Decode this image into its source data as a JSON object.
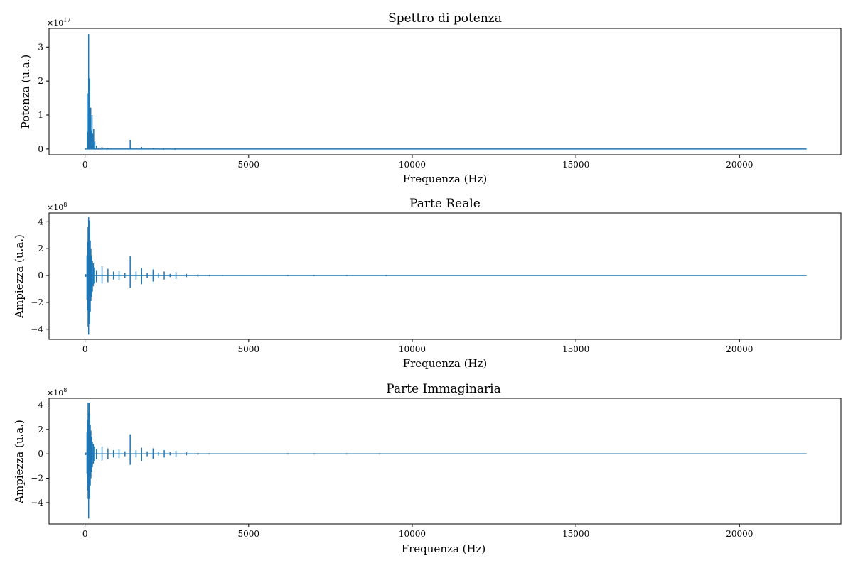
{
  "chart_data": [
    {
      "type": "line",
      "title": "Spettro di potenza",
      "xlabel": "Frequenza (Hz)",
      "ylabel": "Potenza (u.a.)",
      "y_offset_label": "×10",
      "y_offset_exp": "17",
      "xlim": [
        -1100,
        23100
      ],
      "ylim": [
        -0.17,
        3.55
      ],
      "x_ticks": [
        0,
        5000,
        10000,
        15000,
        20000
      ],
      "x_tick_labels": [
        "0",
        "5000",
        "10000",
        "15000",
        "20000"
      ],
      "y_ticks": [
        0,
        1,
        2,
        3
      ],
      "y_tick_labels": [
        "0",
        "1",
        "2",
        "3"
      ],
      "grid": false,
      "series": [
        {
          "color": "#1f77b4",
          "x_range": [
            0,
            22050
          ],
          "kind": "power",
          "spikes": [
            {
              "x": 70,
              "value": 1.64
            },
            {
              "x": 95,
              "value": 0.5
            },
            {
              "x": 110,
              "value": 3.38
            },
            {
              "x": 125,
              "value": 1.2
            },
            {
              "x": 140,
              "value": 2.08
            },
            {
              "x": 160,
              "value": 0.9
            },
            {
              "x": 175,
              "value": 1.22
            },
            {
              "x": 195,
              "value": 0.55
            },
            {
              "x": 215,
              "value": 1.0
            },
            {
              "x": 240,
              "value": 0.45
            },
            {
              "x": 265,
              "value": 0.6
            },
            {
              "x": 300,
              "value": 0.22
            },
            {
              "x": 350,
              "value": 0.1
            },
            {
              "x": 520,
              "value": 0.06
            },
            {
              "x": 700,
              "value": 0.03
            },
            {
              "x": 1380,
              "value": 0.27
            },
            {
              "x": 1730,
              "value": 0.06
            },
            {
              "x": 2080,
              "value": 0.025
            },
            {
              "x": 2400,
              "value": 0.015
            },
            {
              "x": 2750,
              "value": 0.01
            }
          ]
        }
      ]
    },
    {
      "type": "line",
      "title": "Parte Reale",
      "xlabel": "Frequenza (Hz)",
      "ylabel": "Ampiezza (u.a.)",
      "y_offset_label": "×10",
      "y_offset_exp": "8",
      "xlim": [
        -1100,
        23100
      ],
      "ylim": [
        -4.75,
        4.65
      ],
      "x_ticks": [
        0,
        5000,
        10000,
        15000,
        20000
      ],
      "x_tick_labels": [
        "0",
        "5000",
        "10000",
        "15000",
        "20000"
      ],
      "y_ticks": [
        -4,
        -2,
        0,
        2,
        4
      ],
      "y_tick_labels": [
        "−4",
        "−2",
        "0",
        "2",
        "4"
      ],
      "grid": false,
      "series": [
        {
          "color": "#1f77b4",
          "x_range": [
            0,
            22050
          ],
          "kind": "signed",
          "spikes": [
            {
              "x": 20,
              "hi": 0.1,
              "lo": -0.1
            },
            {
              "x": 60,
              "hi": 1.5,
              "lo": -1.8
            },
            {
              "x": 80,
              "hi": 2.5,
              "lo": -2.6
            },
            {
              "x": 95,
              "hi": 3.6,
              "lo": -3.8
            },
            {
              "x": 110,
              "hi": 4.35,
              "lo": -4.4
            },
            {
              "x": 125,
              "hi": 3.2,
              "lo": -3.0
            },
            {
              "x": 140,
              "hi": 4.1,
              "lo": -3.6
            },
            {
              "x": 160,
              "hi": 2.6,
              "lo": -2.7
            },
            {
              "x": 180,
              "hi": 2.0,
              "lo": -1.9
            },
            {
              "x": 200,
              "hi": 1.5,
              "lo": -1.6
            },
            {
              "x": 225,
              "hi": 1.1,
              "lo": -1.2
            },
            {
              "x": 255,
              "hi": 0.9,
              "lo": -0.8
            },
            {
              "x": 290,
              "hi": 0.6,
              "lo": -0.6
            },
            {
              "x": 350,
              "hi": 0.4,
              "lo": -0.5
            },
            {
              "x": 520,
              "hi": 0.7,
              "lo": -0.6
            },
            {
              "x": 700,
              "hi": 0.5,
              "lo": -0.5
            },
            {
              "x": 870,
              "hi": 0.3,
              "lo": -0.3
            },
            {
              "x": 1040,
              "hi": 0.35,
              "lo": -0.35
            },
            {
              "x": 1220,
              "hi": 0.2,
              "lo": -0.2
            },
            {
              "x": 1380,
              "hi": 1.45,
              "lo": -0.9
            },
            {
              "x": 1560,
              "hi": 0.3,
              "lo": -0.3
            },
            {
              "x": 1730,
              "hi": 0.55,
              "lo": -0.65
            },
            {
              "x": 1900,
              "hi": 0.2,
              "lo": -0.2
            },
            {
              "x": 2080,
              "hi": 0.45,
              "lo": -0.45
            },
            {
              "x": 2250,
              "hi": 0.15,
              "lo": -0.15
            },
            {
              "x": 2420,
              "hi": 0.3,
              "lo": -0.3
            },
            {
              "x": 2600,
              "hi": 0.12,
              "lo": -0.12
            },
            {
              "x": 2780,
              "hi": 0.25,
              "lo": -0.25
            },
            {
              "x": 3100,
              "hi": 0.12,
              "lo": -0.12
            },
            {
              "x": 3450,
              "hi": 0.08,
              "lo": -0.08
            },
            {
              "x": 3800,
              "hi": 0.06,
              "lo": -0.06
            },
            {
              "x": 4200,
              "hi": 0.04,
              "lo": -0.04
            },
            {
              "x": 4800,
              "hi": 0.03,
              "lo": -0.03
            },
            {
              "x": 5500,
              "hi": 0.03,
              "lo": -0.03
            },
            {
              "x": 6200,
              "hi": 0.02,
              "lo": -0.02
            },
            {
              "x": 7000,
              "hi": 0.02,
              "lo": -0.02
            },
            {
              "x": 8000,
              "hi": 0.02,
              "lo": -0.02
            },
            {
              "x": 9200,
              "hi": 0.015,
              "lo": -0.015
            }
          ]
        }
      ]
    },
    {
      "type": "line",
      "title": "Parte Immaginaria",
      "xlabel": "Frequenza (Hz)",
      "ylabel": "Ampiezza (u.a.)",
      "y_offset_label": "×10",
      "y_offset_exp": "8",
      "xlim": [
        -1100,
        23100
      ],
      "ylim": [
        -5.75,
        4.55
      ],
      "x_ticks": [
        0,
        5000,
        10000,
        15000,
        20000
      ],
      "x_tick_labels": [
        "0",
        "5000",
        "10000",
        "15000",
        "20000"
      ],
      "y_ticks": [
        -4,
        -2,
        0,
        2,
        4
      ],
      "y_tick_labels": [
        "−4",
        "−2",
        "0",
        "2",
        "4"
      ],
      "grid": false,
      "series": [
        {
          "color": "#1f77b4",
          "x_range": [
            0,
            22050
          ],
          "kind": "signed",
          "spikes": [
            {
              "x": 20,
              "hi": 0.1,
              "lo": -0.1
            },
            {
              "x": 60,
              "hi": 1.8,
              "lo": -1.6
            },
            {
              "x": 80,
              "hi": 2.8,
              "lo": -3.0
            },
            {
              "x": 95,
              "hi": 4.2,
              "lo": -3.7
            },
            {
              "x": 110,
              "hi": 3.4,
              "lo": -5.3
            },
            {
              "x": 125,
              "hi": 4.2,
              "lo": -3.2
            },
            {
              "x": 140,
              "hi": 3.3,
              "lo": -3.7
            },
            {
              "x": 160,
              "hi": 2.4,
              "lo": -2.6
            },
            {
              "x": 180,
              "hi": 1.9,
              "lo": -2.0
            },
            {
              "x": 200,
              "hi": 1.4,
              "lo": -1.5
            },
            {
              "x": 225,
              "hi": 1.0,
              "lo": -1.1
            },
            {
              "x": 255,
              "hi": 0.8,
              "lo": -0.8
            },
            {
              "x": 290,
              "hi": 0.6,
              "lo": -0.6
            },
            {
              "x": 350,
              "hi": 0.4,
              "lo": -0.45
            },
            {
              "x": 520,
              "hi": 0.6,
              "lo": -0.55
            },
            {
              "x": 700,
              "hi": 0.45,
              "lo": -0.45
            },
            {
              "x": 870,
              "hi": 0.3,
              "lo": -0.3
            },
            {
              "x": 1040,
              "hi": 0.35,
              "lo": -0.35
            },
            {
              "x": 1220,
              "hi": 0.2,
              "lo": -0.2
            },
            {
              "x": 1380,
              "hi": 1.6,
              "lo": -0.9
            },
            {
              "x": 1560,
              "hi": 0.3,
              "lo": -0.3
            },
            {
              "x": 1730,
              "hi": 0.5,
              "lo": -0.6
            },
            {
              "x": 1900,
              "hi": 0.2,
              "lo": -0.2
            },
            {
              "x": 2080,
              "hi": 0.45,
              "lo": -0.4
            },
            {
              "x": 2250,
              "hi": 0.15,
              "lo": -0.15
            },
            {
              "x": 2420,
              "hi": 0.3,
              "lo": -0.3
            },
            {
              "x": 2600,
              "hi": 0.12,
              "lo": -0.12
            },
            {
              "x": 2780,
              "hi": 0.25,
              "lo": -0.25
            },
            {
              "x": 3100,
              "hi": 0.12,
              "lo": -0.12
            },
            {
              "x": 3450,
              "hi": 0.08,
              "lo": -0.08
            },
            {
              "x": 3800,
              "hi": 0.06,
              "lo": -0.06
            },
            {
              "x": 4200,
              "hi": 0.04,
              "lo": -0.04
            },
            {
              "x": 4800,
              "hi": 0.03,
              "lo": -0.03
            },
            {
              "x": 5500,
              "hi": 0.03,
              "lo": -0.03
            },
            {
              "x": 6200,
              "hi": 0.02,
              "lo": -0.02
            },
            {
              "x": 7000,
              "hi": 0.02,
              "lo": -0.02
            },
            {
              "x": 8000,
              "hi": 0.02,
              "lo": -0.02
            },
            {
              "x": 9000,
              "hi": 0.015,
              "lo": -0.015
            }
          ]
        }
      ]
    }
  ]
}
